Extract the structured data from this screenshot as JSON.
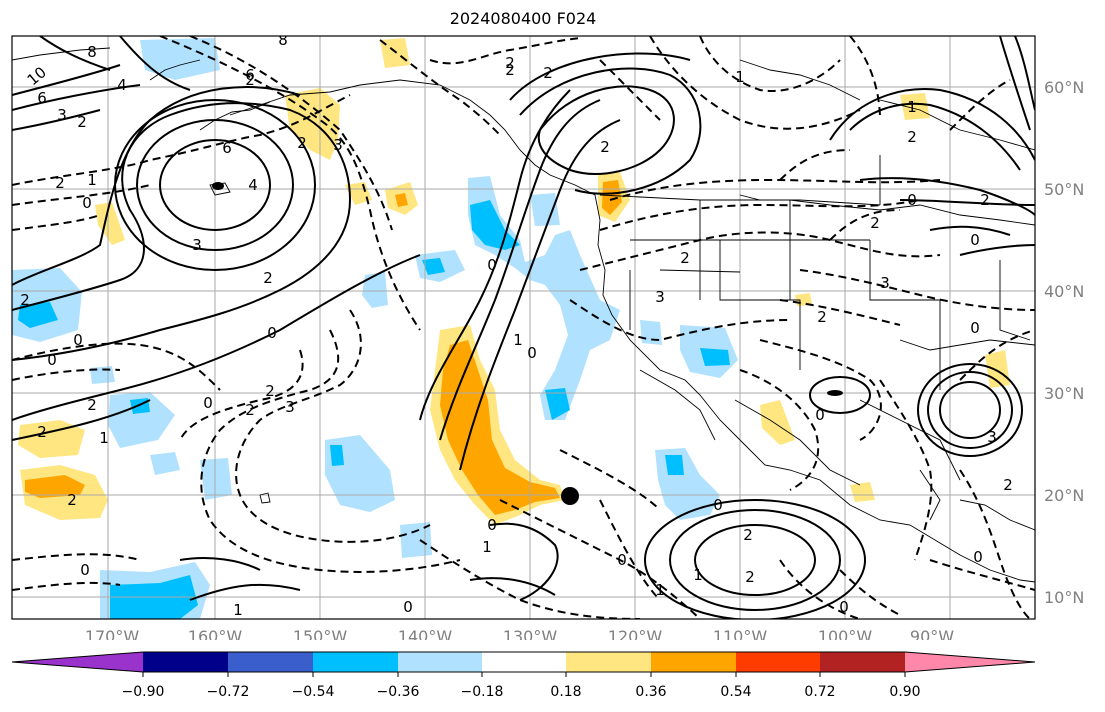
{
  "title": "2024080400 F024",
  "lat_labels": [
    "60°N",
    "50°N",
    "40°N",
    "30°N",
    "20°N",
    "10°N"
  ],
  "lon_labels": [
    "170°W",
    "160°W",
    "150°W",
    "140°W",
    "130°W",
    "120°W",
    "110°W",
    "100°W",
    "90°W"
  ],
  "colorbar": {
    "colors": [
      "#9933cc",
      "#00008b",
      "#3a5fcd",
      "#00bfff",
      "#b0e2ff",
      "#ffffff",
      "#ffe680",
      "#ffa500",
      "#ff3c00",
      "#b22222",
      "#ff88aa"
    ],
    "tick_labels": [
      "−0.90",
      "−0.72",
      "−0.54",
      "−0.36",
      "−0.18",
      "0.18",
      "0.36",
      "0.54",
      "0.72",
      "0.90"
    ]
  },
  "contour_labels": [
    "10",
    "8",
    "6",
    "4",
    "2",
    "8",
    "3",
    "2",
    "6",
    "4",
    "3",
    "2",
    "0",
    "1",
    "2",
    "0",
    "6",
    "2",
    "3",
    "2",
    "0",
    "2",
    "0",
    "2",
    "1",
    "0",
    "2",
    "2",
    "3",
    "2",
    "0",
    "1",
    "2",
    "2",
    "2",
    "0",
    "3",
    "2",
    "0",
    "0",
    "1",
    "0",
    "0",
    "1",
    "2",
    "2",
    "0",
    "1",
    "1",
    "2",
    "1",
    "2",
    "2",
    "3",
    "0",
    "0",
    "3",
    "2",
    "0",
    "0",
    "0",
    "1",
    "2",
    "2",
    "0"
  ],
  "colors": {
    "grid": "#aaaaaa",
    "coast": "#000000",
    "text_axis": "#808080"
  }
}
